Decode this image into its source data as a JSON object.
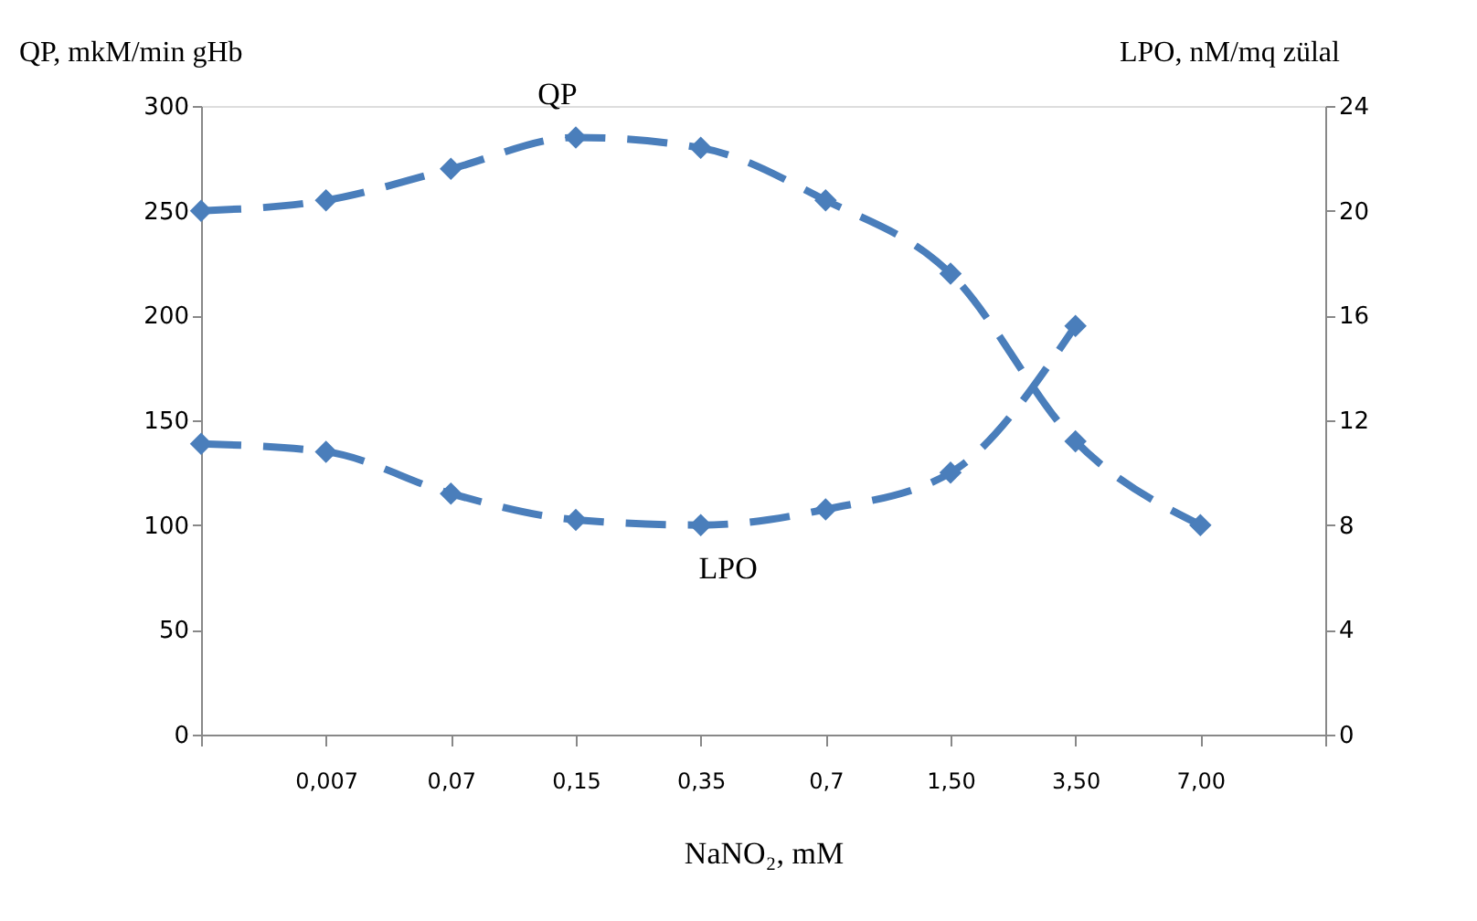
{
  "chart_data": {
    "type": "line",
    "xlabel": "NaNO₂, mM",
    "ylabel": "QP, mkM/min gHb",
    "y2label": "LPO, nM/mq zülal",
    "categories": [
      null,
      "0,007",
      "0,07",
      "0,15",
      "0,35",
      "0,7",
      "1,50",
      "3,50",
      "7,00",
      null
    ],
    "series": [
      {
        "name": "QP",
        "color": "#4a7ebb",
        "values": [
          250,
          255,
          270,
          285,
          280,
          255,
          220,
          140,
          100,
          null
        ]
      },
      {
        "name": "LPO",
        "color": "#4a7ebb",
        "axis": "y2",
        "values": [
          11.1,
          10.8,
          9.2,
          8.2,
          8.0,
          8.6,
          10.0,
          15.6,
          null,
          null
        ]
      }
    ],
    "legend": false,
    "ylim": [
      0,
      300
    ],
    "yticks": [
      0,
      50,
      100,
      150,
      200,
      250,
      300
    ],
    "y2lim": [
      0,
      24
    ],
    "y2ticks": [
      0,
      4,
      8,
      12,
      16,
      20,
      24
    ],
    "grid": false,
    "marker": "diamond",
    "line_style": "dashed"
  }
}
